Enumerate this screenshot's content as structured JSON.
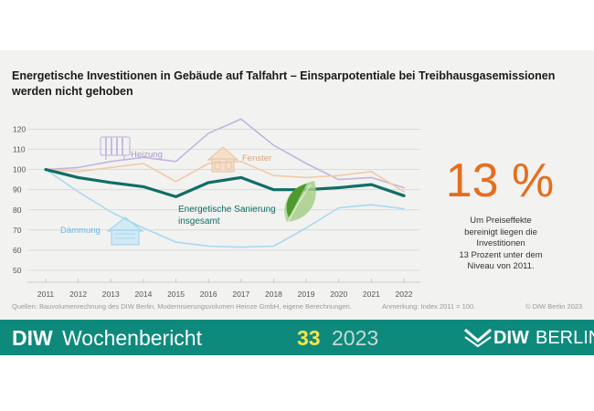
{
  "title": "Energetische Investitionen in Gebäude auf Talfahrt – Einsparpotentiale bei Treibhausgasemissionen werden nicht gehoben",
  "chart_data": {
    "type": "line",
    "x": [
      2011,
      2012,
      2013,
      2014,
      2015,
      2016,
      2017,
      2018,
      2019,
      2020,
      2021,
      2022
    ],
    "yticks": [
      50,
      60,
      70,
      80,
      90,
      100,
      110,
      120
    ],
    "ylim": [
      50,
      122
    ],
    "xlim": [
      2011,
      2022
    ],
    "grid": true,
    "series": [
      {
        "name": "Heizung",
        "color": "#c2b5dc",
        "width": 1.6,
        "values": [
          100,
          101,
          104,
          106,
          104,
          118,
          125,
          112,
          103,
          95,
          96,
          91
        ]
      },
      {
        "name": "Fenster",
        "color": "#f0cba8",
        "width": 1.6,
        "values": [
          100,
          99,
          101,
          103,
          94,
          103,
          104,
          97,
          96,
          97,
          99,
          89
        ]
      },
      {
        "name": "Dämmung",
        "color": "#a9d9f0",
        "width": 1.6,
        "values": [
          100,
          89,
          79,
          71,
          64,
          62,
          61.5,
          62,
          71,
          81,
          82.5,
          80.5
        ]
      },
      {
        "name": "Energetische Sanierung insgesamt",
        "color": "#0f6e66",
        "width": 3.2,
        "values": [
          100,
          96,
          93.5,
          91.5,
          86.5,
          93.5,
          96,
          90,
          90,
          91,
          92.5,
          87
        ]
      }
    ],
    "labels": {
      "heizung": "Heizung",
      "fenster": "Fenster",
      "daemmung": "Dämmung",
      "sanierung_line1": "Energetische Sanierung",
      "sanierung_line2": "insgesamt"
    }
  },
  "callout": {
    "value": "13 %",
    "line1": "Um Preiseffekte",
    "line2": "bereinigt liegen die",
    "line3": "Investitionen",
    "line4": "13 Prozent unter dem",
    "line5": "Niveau von 2011."
  },
  "footer": {
    "sources": "Quellen: Bauvolumenrechnung des DIW Berlin, Modernisierungsvolumen Heinze GmbH, eigene Berechnungen.",
    "note": "Anmerkung: Index 2011 = 100.",
    "copyright": "© DIW Berlin 2023"
  },
  "banner": {
    "brand": "DIW",
    "publication": "Wochenbericht",
    "issue": "33",
    "year": "2023",
    "logo_diw": "DIW",
    "logo_berlin": "BERLIN"
  },
  "colors": {
    "panel": "#f2f2f1",
    "accent_orange": "#e56e1f",
    "banner_green": "#0e8a7d",
    "issue_yellow": "#f2e64b"
  },
  "icons": [
    "radiator-icon",
    "window-icon",
    "house-insulation-icon",
    "leaf-icon"
  ]
}
